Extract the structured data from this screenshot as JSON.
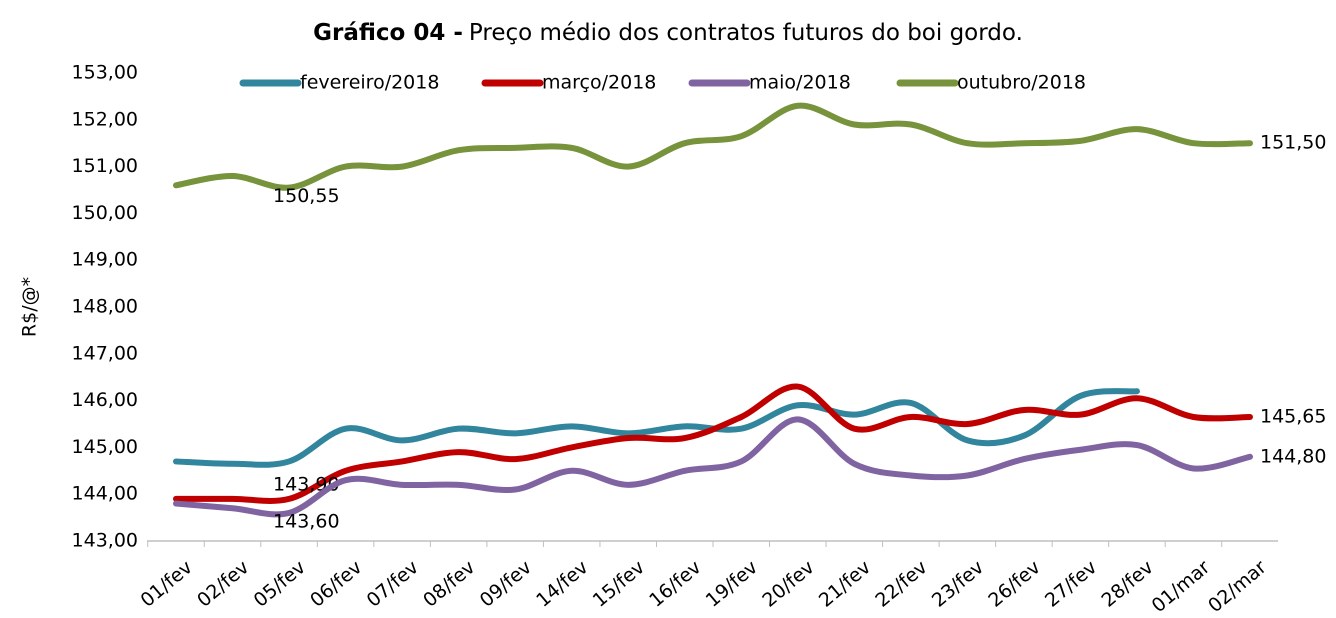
{
  "chart_data": {
    "type": "line",
    "title": [
      "Gráfico 04 -",
      "Preço médio dos contratos futuros do boi gordo."
    ],
    "y_label": "R$/@*",
    "categories": [
      "01/fev",
      "02/fev",
      "05/fev",
      "06/fev",
      "07/fev",
      "08/fev",
      "09/fev",
      "14/fev",
      "15/fev",
      "16/fev",
      "19/fev",
      "20/fev",
      "21/fev",
      "22/fev",
      "23/fev",
      "26/fev",
      "27/fev",
      "28/fev",
      "01/mar",
      "02/mar"
    ],
    "ylim": [
      143,
      153
    ],
    "yticks": [
      {
        "value": 143,
        "label": "143,00"
      },
      {
        "value": 144,
        "label": "144,00"
      },
      {
        "value": 145,
        "label": "145,00"
      },
      {
        "value": 146,
        "label": "146,00"
      },
      {
        "value": 147,
        "label": "147,00"
      },
      {
        "value": 148,
        "label": "148,00"
      },
      {
        "value": 149,
        "label": "149,00"
      },
      {
        "value": 150,
        "label": "150,00"
      },
      {
        "value": 151,
        "label": "151,00"
      },
      {
        "value": 152,
        "label": "152,00"
      },
      {
        "value": 153,
        "label": "153,00"
      }
    ],
    "grid": false,
    "legend": "top",
    "series": [
      {
        "name": "fevereiro/2018",
        "color": "#31859c",
        "values": [
          144.7,
          144.65,
          144.7,
          145.4,
          145.15,
          145.4,
          145.3,
          145.45,
          145.3,
          145.45,
          145.4,
          145.9,
          145.7,
          145.95,
          145.15,
          145.25,
          146.1,
          146.2,
          null,
          null
        ]
      },
      {
        "name": "março/2018",
        "color": "#c00000",
        "values": [
          143.9,
          143.9,
          143.9,
          144.5,
          144.7,
          144.9,
          144.75,
          145.0,
          145.2,
          145.2,
          145.65,
          146.3,
          145.4,
          145.65,
          145.5,
          145.8,
          145.7,
          146.05,
          145.65,
          145.65
        ],
        "value_labels": [
          null,
          null,
          "143,90",
          null,
          null,
          null,
          null,
          null,
          null,
          null,
          null,
          null,
          null,
          null,
          null,
          null,
          null,
          null,
          null,
          "145,65"
        ]
      },
      {
        "name": "maio/2018",
        "color": "#8064a2",
        "values": [
          143.8,
          143.7,
          143.6,
          144.3,
          144.2,
          144.2,
          144.1,
          144.5,
          144.2,
          144.5,
          144.7,
          145.6,
          144.65,
          144.4,
          144.4,
          144.75,
          144.95,
          145.05,
          144.55,
          144.8
        ],
        "value_labels": [
          null,
          null,
          "143,60",
          null,
          null,
          null,
          null,
          null,
          null,
          null,
          null,
          null,
          null,
          null,
          null,
          null,
          null,
          null,
          null,
          "144,80"
        ]
      },
      {
        "name": "outubro/2018",
        "color": "#77933c",
        "values": [
          150.6,
          150.8,
          150.55,
          151.0,
          151.0,
          151.35,
          151.4,
          151.4,
          151.0,
          151.5,
          151.65,
          152.3,
          151.9,
          151.9,
          151.5,
          151.5,
          151.55,
          151.8,
          151.5,
          151.5
        ],
        "value_labels": [
          null,
          null,
          "150,55",
          null,
          null,
          null,
          null,
          null,
          null,
          null,
          null,
          null,
          null,
          null,
          null,
          null,
          null,
          null,
          null,
          "151,50"
        ]
      }
    ]
  }
}
